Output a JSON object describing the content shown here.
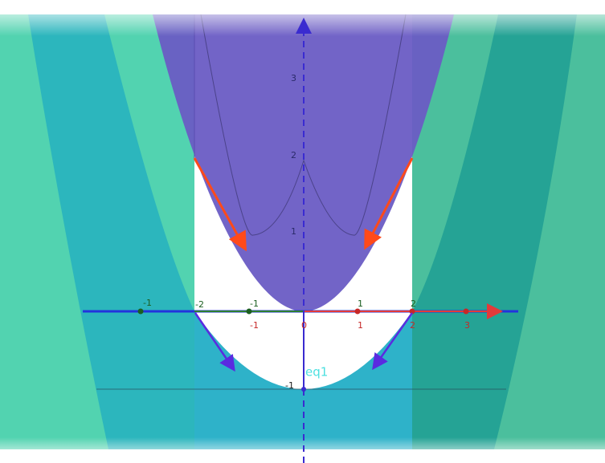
{
  "z_axis_labels": [
    "3",
    "2",
    "1",
    "-1"
  ],
  "y_axis_labels": {
    "top": [
      "-1",
      "-2",
      "-1"
    ],
    "bottom": [
      "-1"
    ]
  },
  "x_axis_labels": {
    "top": [
      "1",
      "2"
    ],
    "bottom": [
      "1",
      "2",
      "3"
    ]
  },
  "origin_label": "0",
  "curve_label": "eq1"
}
